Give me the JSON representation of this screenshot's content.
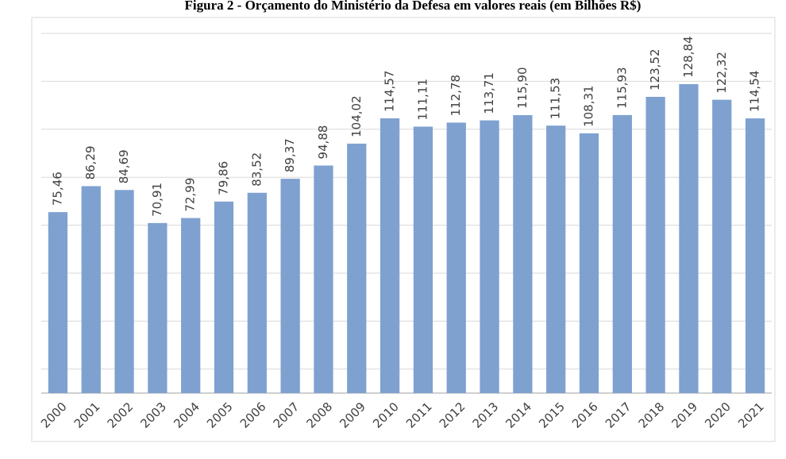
{
  "chart_data": {
    "type": "bar",
    "title": "Figura 2 - Orçamento do Ministério da Defesa em valores reais (em Bilhões R$)",
    "categories": [
      "2000",
      "2001",
      "2002",
      "2003",
      "2004",
      "2005",
      "2006",
      "2007",
      "2008",
      "2009",
      "2010",
      "2011",
      "2012",
      "2013",
      "2014",
      "2015",
      "2016",
      "2017",
      "2018",
      "2019",
      "2020",
      "2021"
    ],
    "values": [
      75.46,
      86.29,
      84.69,
      70.91,
      72.99,
      79.86,
      83.52,
      89.37,
      94.88,
      104.02,
      114.57,
      111.11,
      112.78,
      113.71,
      115.9,
      111.53,
      108.31,
      115.93,
      123.52,
      128.84,
      122.32,
      114.54
    ],
    "value_labels": [
      "75,46",
      "86,29",
      "84,69",
      "70,91",
      "72,99",
      "79,86",
      "83,52",
      "89,37",
      "94,88",
      "104,02",
      "114,57",
      "111,11",
      "112,78",
      "113,71",
      "115,90",
      "111,53",
      "108,31",
      "115,93",
      "123,52",
      "128,84",
      "122,32",
      "114,54"
    ],
    "color": "#7ea1d0",
    "ylim": [
      0,
      150
    ],
    "yticks": [
      10,
      30,
      50,
      70,
      90,
      110,
      130,
      150
    ],
    "grid": true
  }
}
